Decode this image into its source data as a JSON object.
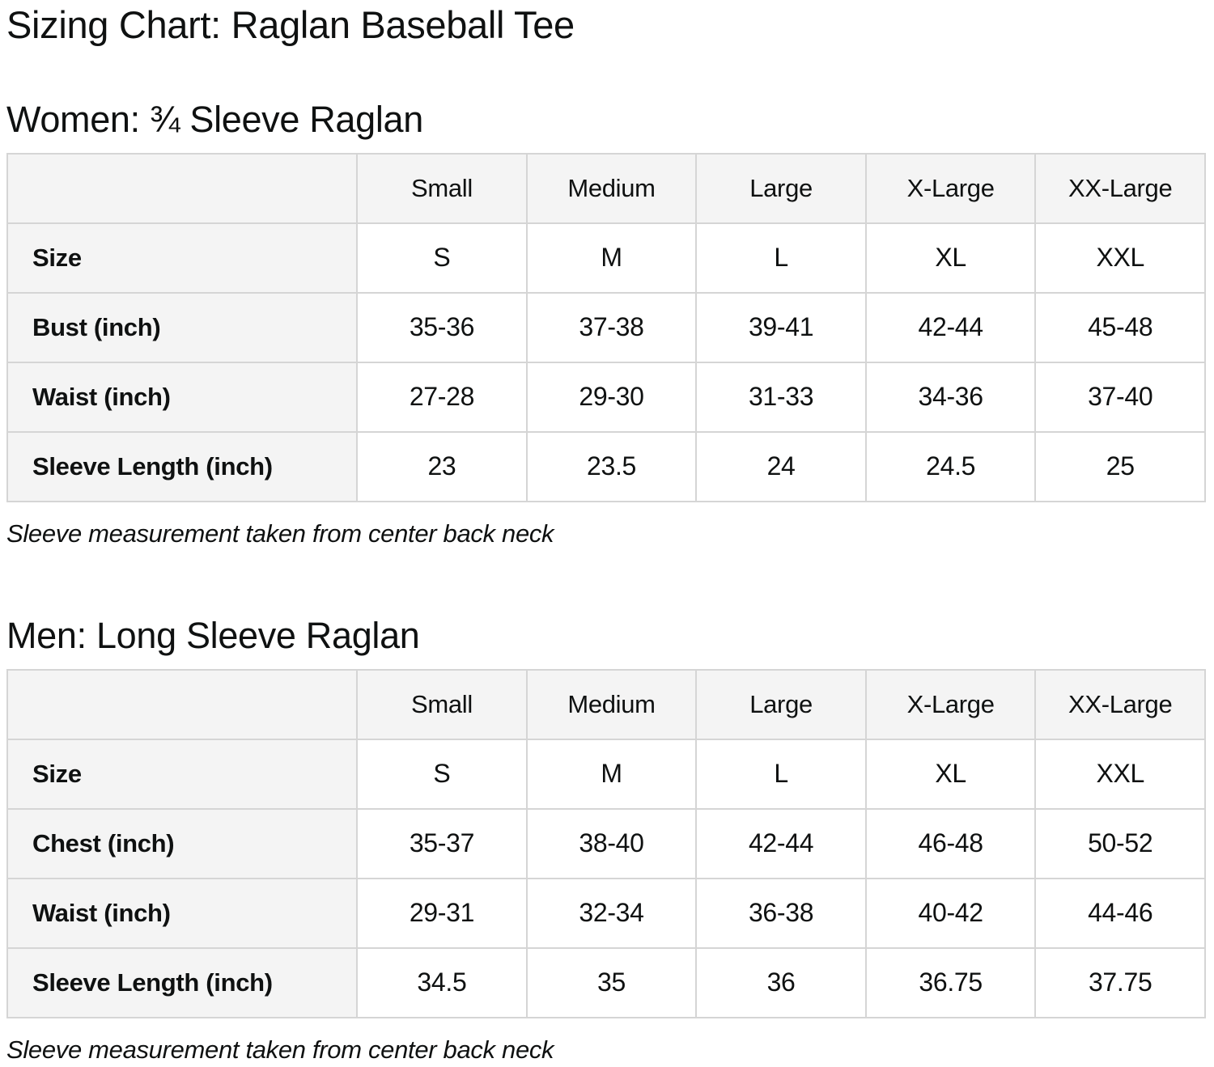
{
  "page": {
    "title": "Sizing Chart: Raglan Baseball Tee"
  },
  "sections": [
    {
      "heading": "Women: ¾ Sleeve Raglan",
      "table": {
        "columns": [
          "",
          "Small",
          "Medium",
          "Large",
          "X-Large",
          "XX-Large"
        ],
        "rows": [
          {
            "label": "Size",
            "values": [
              "S",
              "M",
              "L",
              "XL",
              "XXL"
            ]
          },
          {
            "label": "Bust (inch)",
            "values": [
              "35-36",
              "37-38",
              "39-41",
              "42-44",
              "45-48"
            ]
          },
          {
            "label": "Waist (inch)",
            "values": [
              "27-28",
              "29-30",
              "31-33",
              "34-36",
              "37-40"
            ]
          },
          {
            "label": "Sleeve Length (inch)",
            "values": [
              "23",
              "23.5",
              "24",
              "24.5",
              "25"
            ]
          }
        ]
      },
      "note": "Sleeve measurement taken from center back neck"
    },
    {
      "heading": "Men: Long Sleeve Raglan",
      "table": {
        "columns": [
          "",
          "Small",
          "Medium",
          "Large",
          "X-Large",
          "XX-Large"
        ],
        "rows": [
          {
            "label": "Size",
            "values": [
              "S",
              "M",
              "L",
              "XL",
              "XXL"
            ]
          },
          {
            "label": "Chest (inch)",
            "values": [
              "35-37",
              "38-40",
              "42-44",
              "46-48",
              "50-52"
            ]
          },
          {
            "label": "Waist (inch)",
            "values": [
              "29-31",
              "32-34",
              "36-38",
              "40-42",
              "44-46"
            ]
          },
          {
            "label": "Sleeve Length (inch)",
            "values": [
              "34.5",
              "35",
              "36",
              "36.75",
              "37.75"
            ]
          }
        ]
      },
      "note": "Sleeve measurement taken from center back neck"
    }
  ]
}
